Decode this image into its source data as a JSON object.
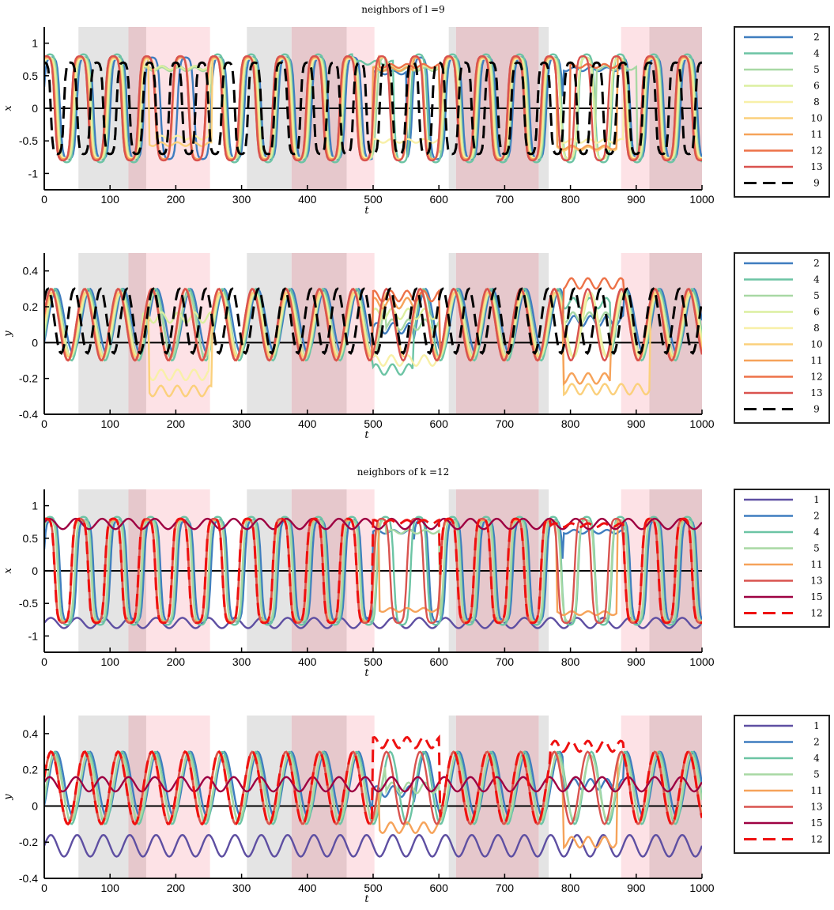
{
  "chart_data": [
    {
      "type": "line",
      "title": "neighbors of l =9",
      "xlabel": "t",
      "ylabel": "x",
      "xlim": [
        0,
        1000
      ],
      "ylim": [
        -1.25,
        1.25
      ],
      "xticks": [
        "0",
        "100",
        "200",
        "300",
        "400",
        "500",
        "600",
        "700",
        "800",
        "900",
        "1000"
      ],
      "yticks": [
        "1",
        "0.5",
        "0",
        "-0.5",
        "-1"
      ],
      "shaded_intervals": [
        {
          "start": 52,
          "end": 128,
          "color": "#e4e4e4"
        },
        {
          "start": 128,
          "end": 155,
          "color": "#e6c8cc"
        },
        {
          "start": 155,
          "end": 252,
          "color": "#fde2e6"
        },
        {
          "start": 308,
          "end": 376,
          "color": "#e4e4e4"
        },
        {
          "start": 376,
          "end": 460,
          "color": "#e6c8cc"
        },
        {
          "start": 460,
          "end": 502,
          "color": "#fde2e6"
        },
        {
          "start": 615,
          "end": 626,
          "color": "#e4e4e4"
        },
        {
          "start": 626,
          "end": 752,
          "color": "#e6c8cc"
        },
        {
          "start": 752,
          "end": 767,
          "color": "#e4e4e4"
        },
        {
          "start": 877,
          "end": 920,
          "color": "#fde2e6"
        },
        {
          "start": 920,
          "end": 1000,
          "color": "#e6c8cc"
        }
      ],
      "series": [
        {
          "name": "2",
          "color": "#3f7dbf",
          "dashed": false,
          "kind": "osc_x",
          "period": 51,
          "amp": 0.8,
          "phase": 0.2,
          "quiet": [
            [
              500,
              550,
              0.55
            ],
            [
              790,
              880,
              0.6
            ]
          ]
        },
        {
          "name": "4",
          "color": "#6cc4a4",
          "dashed": false,
          "kind": "osc_x",
          "period": 51,
          "amp": 0.85,
          "phase": 0.5,
          "quiet": [
            [
              150,
              250,
              0.62
            ],
            [
              470,
              530,
              0.7
            ]
          ]
        },
        {
          "name": "5",
          "color": "#a8d8a4",
          "dashed": false,
          "kind": "osc_x",
          "period": 51,
          "amp": 0.8,
          "phase": 0.6,
          "quiet": [
            [
              150,
              250,
              0.6
            ],
            [
              520,
              600,
              0.6
            ],
            [
              840,
              900,
              0.62
            ]
          ]
        },
        {
          "name": "6",
          "color": "#dcefa0",
          "dashed": false,
          "kind": "osc_x",
          "period": 51,
          "amp": 0.8,
          "phase": 0.7,
          "quiet": [
            [
              150,
              255,
              0.62
            ],
            [
              500,
              600,
              0.62
            ]
          ]
        },
        {
          "name": "8",
          "color": "#f8f0a8",
          "dashed": false,
          "kind": "osc_x",
          "period": 51,
          "amp": 0.78,
          "phase": 0.9,
          "quiet": [
            [
              170,
              250,
              -0.45
            ],
            [
              500,
              600,
              -0.5
            ],
            [
              780,
              880,
              -0.5
            ]
          ]
        },
        {
          "name": "10",
          "color": "#fbd07c",
          "dashed": false,
          "kind": "osc_x",
          "period": 51,
          "amp": 0.8,
          "phase": 1.0,
          "quiet": [
            [
              160,
              255,
              -0.55
            ],
            [
              780,
              870,
              -0.62
            ]
          ]
        },
        {
          "name": "11",
          "color": "#f6a35a",
          "dashed": false,
          "kind": "osc_x",
          "period": 51,
          "amp": 0.8,
          "phase": 1.1,
          "quiet": [
            [
              500,
              560,
              0.6
            ],
            [
              780,
              870,
              -0.6
            ]
          ]
        },
        {
          "name": "12",
          "color": "#ed7248",
          "dashed": false,
          "kind": "osc_x",
          "period": 51,
          "amp": 0.82,
          "phase": 1.2,
          "quiet": [
            [
              510,
              600,
              0.65
            ],
            [
              800,
              880,
              0.65
            ]
          ]
        },
        {
          "name": "13",
          "color": "#d9534f",
          "dashed": false,
          "kind": "osc_x",
          "period": 51,
          "amp": 0.82,
          "phase": 1.2,
          "quiet": []
        },
        {
          "name": "9",
          "color": "#000000",
          "dashed": true,
          "kind": "osc_x",
          "period": 40,
          "amp": 0.72,
          "phase": 1.6,
          "quiet": []
        }
      ]
    },
    {
      "type": "line",
      "title": "",
      "xlabel": "t",
      "ylabel": "y",
      "xlim": [
        0,
        1000
      ],
      "ylim": [
        -0.4,
        0.5
      ],
      "xticks": [
        "0",
        "100",
        "200",
        "300",
        "400",
        "500",
        "600",
        "700",
        "800",
        "900",
        "1000"
      ],
      "yticks": [
        "0.4",
        "0.2",
        "0",
        "-0.2",
        "-0.4"
      ],
      "shaded_intervals": [
        {
          "start": 52,
          "end": 128,
          "color": "#e4e4e4"
        },
        {
          "start": 128,
          "end": 155,
          "color": "#e6c8cc"
        },
        {
          "start": 155,
          "end": 252,
          "color": "#fde2e6"
        },
        {
          "start": 308,
          "end": 376,
          "color": "#e4e4e4"
        },
        {
          "start": 376,
          "end": 460,
          "color": "#e6c8cc"
        },
        {
          "start": 460,
          "end": 502,
          "color": "#fde2e6"
        },
        {
          "start": 615,
          "end": 626,
          "color": "#e4e4e4"
        },
        {
          "start": 626,
          "end": 752,
          "color": "#e6c8cc"
        },
        {
          "start": 752,
          "end": 767,
          "color": "#e4e4e4"
        },
        {
          "start": 877,
          "end": 920,
          "color": "#fde2e6"
        },
        {
          "start": 920,
          "end": 1000,
          "color": "#e6c8cc"
        }
      ],
      "series": [
        {
          "name": "2",
          "color": "#3f7dbf",
          "dashed": false,
          "kind": "osc_y",
          "period": 51,
          "amp": 0.18,
          "base": 0.12,
          "phase": 0.2,
          "quiet": [
            [
              500,
              560,
              0.08
            ],
            [
              790,
              880,
              0.12
            ]
          ]
        },
        {
          "name": "4",
          "color": "#6cc4a4",
          "dashed": false,
          "kind": "osc_y",
          "period": 51,
          "amp": 0.2,
          "base": 0.1,
          "phase": 0.5,
          "quiet": [
            [
              500,
              560,
              -0.15
            ],
            [
              790,
              860,
              0.22
            ]
          ]
        },
        {
          "name": "5",
          "color": "#a8d8a4",
          "dashed": false,
          "kind": "osc_y",
          "period": 51,
          "amp": 0.18,
          "base": 0.1,
          "phase": 0.6,
          "quiet": [
            [
              520,
              600,
              0.1
            ],
            [
              790,
              860,
              0.14
            ]
          ]
        },
        {
          "name": "6",
          "color": "#dcefa0",
          "dashed": false,
          "kind": "osc_y",
          "period": 51,
          "amp": 0.18,
          "base": 0.1,
          "phase": 0.7,
          "quiet": [
            [
              150,
              255,
              0.14
            ],
            [
              500,
              600,
              0.16
            ]
          ]
        },
        {
          "name": "8",
          "color": "#f8f0a8",
          "dashed": false,
          "kind": "osc_y",
          "period": 51,
          "amp": 0.18,
          "base": 0.1,
          "phase": 0.9,
          "quiet": [
            [
              160,
              250,
              -0.18
            ],
            [
              500,
              600,
              -0.1
            ]
          ]
        },
        {
          "name": "10",
          "color": "#fbd07c",
          "dashed": false,
          "kind": "osc_y",
          "period": 51,
          "amp": 0.18,
          "base": 0.1,
          "phase": 1.0,
          "quiet": [
            [
              160,
              255,
              -0.27
            ],
            [
              790,
              920,
              -0.26
            ]
          ]
        },
        {
          "name": "11",
          "color": "#f6a35a",
          "dashed": false,
          "kind": "osc_y",
          "period": 51,
          "amp": 0.2,
          "base": 0.1,
          "phase": 1.1,
          "quiet": [
            [
              500,
              560,
              0.22
            ],
            [
              790,
              860,
              -0.2
            ]
          ]
        },
        {
          "name": "12",
          "color": "#ed7248",
          "dashed": false,
          "kind": "osc_y",
          "period": 51,
          "amp": 0.2,
          "base": 0.1,
          "phase": 1.2,
          "quiet": [
            [
              500,
              600,
              0.26
            ],
            [
              790,
              880,
              0.33
            ]
          ]
        },
        {
          "name": "13",
          "color": "#d9534f",
          "dashed": false,
          "kind": "osc_y",
          "period": 51,
          "amp": 0.2,
          "base": 0.1,
          "phase": 1.2,
          "quiet": []
        },
        {
          "name": "9",
          "color": "#000000",
          "dashed": true,
          "kind": "osc_y",
          "period": 40,
          "amp": 0.18,
          "base": 0.12,
          "phase": 1.6,
          "quiet": []
        }
      ]
    },
    {
      "type": "line",
      "title": "neighbors of k =12",
      "xlabel": "t",
      "ylabel": "x",
      "xlim": [
        0,
        1000
      ],
      "ylim": [
        -1.25,
        1.25
      ],
      "xticks": [
        "0",
        "100",
        "200",
        "300",
        "400",
        "500",
        "600",
        "700",
        "800",
        "900",
        "1000"
      ],
      "yticks": [
        "1",
        "0.5",
        "0",
        "-0.5",
        "-1"
      ],
      "shaded_intervals": [
        {
          "start": 52,
          "end": 128,
          "color": "#e4e4e4"
        },
        {
          "start": 128,
          "end": 155,
          "color": "#e6c8cc"
        },
        {
          "start": 155,
          "end": 252,
          "color": "#fde2e6"
        },
        {
          "start": 308,
          "end": 376,
          "color": "#e4e4e4"
        },
        {
          "start": 376,
          "end": 460,
          "color": "#e6c8cc"
        },
        {
          "start": 460,
          "end": 502,
          "color": "#fde2e6"
        },
        {
          "start": 615,
          "end": 626,
          "color": "#e4e4e4"
        },
        {
          "start": 626,
          "end": 752,
          "color": "#e6c8cc"
        },
        {
          "start": 752,
          "end": 767,
          "color": "#e4e4e4"
        },
        {
          "start": 877,
          "end": 920,
          "color": "#fde2e6"
        },
        {
          "start": 920,
          "end": 1000,
          "color": "#e6c8cc"
        }
      ],
      "series": [
        {
          "name": "1",
          "color": "#5e4fa2",
          "dashed": false,
          "kind": "quiet_x",
          "period": 40,
          "amp": 0.08,
          "base": -0.8,
          "phase": 0.0,
          "quiet": []
        },
        {
          "name": "2",
          "color": "#3f7dbf",
          "dashed": false,
          "kind": "osc_x",
          "period": 51,
          "amp": 0.8,
          "phase": 0.2,
          "quiet": [
            [
              500,
              560,
              0.6
            ],
            [
              790,
              880,
              0.6
            ]
          ]
        },
        {
          "name": "4",
          "color": "#6cc4a4",
          "dashed": false,
          "kind": "osc_x",
          "period": 51,
          "amp": 0.85,
          "phase": 0.5,
          "quiet": []
        },
        {
          "name": "5",
          "color": "#a8d8a4",
          "dashed": false,
          "kind": "osc_x",
          "period": 51,
          "amp": 0.8,
          "phase": 0.6,
          "quiet": [
            [
              520,
              600,
              0.6
            ]
          ]
        },
        {
          "name": "11",
          "color": "#f6a35a",
          "dashed": false,
          "kind": "osc_x",
          "period": 51,
          "amp": 0.8,
          "phase": 1.1,
          "quiet": [
            [
              510,
              600,
              -0.6
            ],
            [
              780,
              870,
              -0.65
            ]
          ]
        },
        {
          "name": "13",
          "color": "#d9534f",
          "dashed": false,
          "kind": "osc_x",
          "period": 51,
          "amp": 0.82,
          "phase": 1.2,
          "quiet": []
        },
        {
          "name": "15",
          "color": "#9e0142",
          "dashed": false,
          "kind": "quiet_x",
          "period": 40,
          "amp": 0.08,
          "base": 0.72,
          "phase": 0.3,
          "quiet": []
        },
        {
          "name": "12",
          "color": "#ee1111",
          "dashed": true,
          "kind": "osc_x",
          "period": 51,
          "amp": 0.82,
          "phase": 1.2,
          "quiet": [
            [
              500,
              600,
              0.75
            ],
            [
              770,
              880,
              0.7
            ]
          ]
        }
      ]
    },
    {
      "type": "line",
      "title": "",
      "xlabel": "t",
      "ylabel": "y",
      "xlim": [
        0,
        1000
      ],
      "ylim": [
        -0.4,
        0.5
      ],
      "xticks": [
        "0",
        "100",
        "200",
        "300",
        "400",
        "500",
        "600",
        "700",
        "800",
        "900",
        "1000"
      ],
      "yticks": [
        "0.4",
        "0.2",
        "0",
        "-0.2",
        "-0.4"
      ],
      "shaded_intervals": [
        {
          "start": 52,
          "end": 128,
          "color": "#e4e4e4"
        },
        {
          "start": 128,
          "end": 155,
          "color": "#e6c8cc"
        },
        {
          "start": 155,
          "end": 252,
          "color": "#fde2e6"
        },
        {
          "start": 308,
          "end": 376,
          "color": "#e4e4e4"
        },
        {
          "start": 376,
          "end": 460,
          "color": "#e6c8cc"
        },
        {
          "start": 460,
          "end": 502,
          "color": "#fde2e6"
        },
        {
          "start": 615,
          "end": 626,
          "color": "#e4e4e4"
        },
        {
          "start": 626,
          "end": 752,
          "color": "#e6c8cc"
        },
        {
          "start": 752,
          "end": 767,
          "color": "#e4e4e4"
        },
        {
          "start": 877,
          "end": 920,
          "color": "#fde2e6"
        },
        {
          "start": 920,
          "end": 1000,
          "color": "#e6c8cc"
        }
      ],
      "series": [
        {
          "name": "1",
          "color": "#5e4fa2",
          "dashed": false,
          "kind": "quiet_y",
          "period": 40,
          "amp": 0.06,
          "base": -0.22,
          "phase": 0.0,
          "quiet": []
        },
        {
          "name": "2",
          "color": "#3f7dbf",
          "dashed": false,
          "kind": "osc_y",
          "period": 51,
          "amp": 0.18,
          "base": 0.12,
          "phase": 0.2,
          "quiet": [
            [
              500,
              560,
              0.08
            ],
            [
              790,
              880,
              0.12
            ]
          ]
        },
        {
          "name": "4",
          "color": "#6cc4a4",
          "dashed": false,
          "kind": "osc_y",
          "period": 51,
          "amp": 0.2,
          "base": 0.1,
          "phase": 0.5,
          "quiet": []
        },
        {
          "name": "5",
          "color": "#a8d8a4",
          "dashed": false,
          "kind": "osc_y",
          "period": 51,
          "amp": 0.18,
          "base": 0.1,
          "phase": 0.6,
          "quiet": [
            [
              520,
              600,
              0.1
            ]
          ]
        },
        {
          "name": "11",
          "color": "#f6a35a",
          "dashed": false,
          "kind": "osc_y",
          "period": 51,
          "amp": 0.2,
          "base": 0.1,
          "phase": 1.1,
          "quiet": [
            [
              510,
              600,
              -0.12
            ],
            [
              790,
              870,
              -0.2
            ]
          ]
        },
        {
          "name": "13",
          "color": "#d9534f",
          "dashed": false,
          "kind": "osc_y",
          "period": 51,
          "amp": 0.2,
          "base": 0.1,
          "phase": 1.2,
          "quiet": []
        },
        {
          "name": "15",
          "color": "#9e0142",
          "dashed": false,
          "kind": "quiet_y",
          "period": 40,
          "amp": 0.04,
          "base": 0.12,
          "phase": 0.3,
          "quiet": []
        },
        {
          "name": "12",
          "color": "#ee1111",
          "dashed": true,
          "kind": "osc_y",
          "period": 51,
          "amp": 0.2,
          "base": 0.1,
          "phase": 1.2,
          "quiet": [
            [
              500,
              600,
              0.35
            ],
            [
              770,
              880,
              0.33
            ]
          ]
        }
      ]
    }
  ]
}
